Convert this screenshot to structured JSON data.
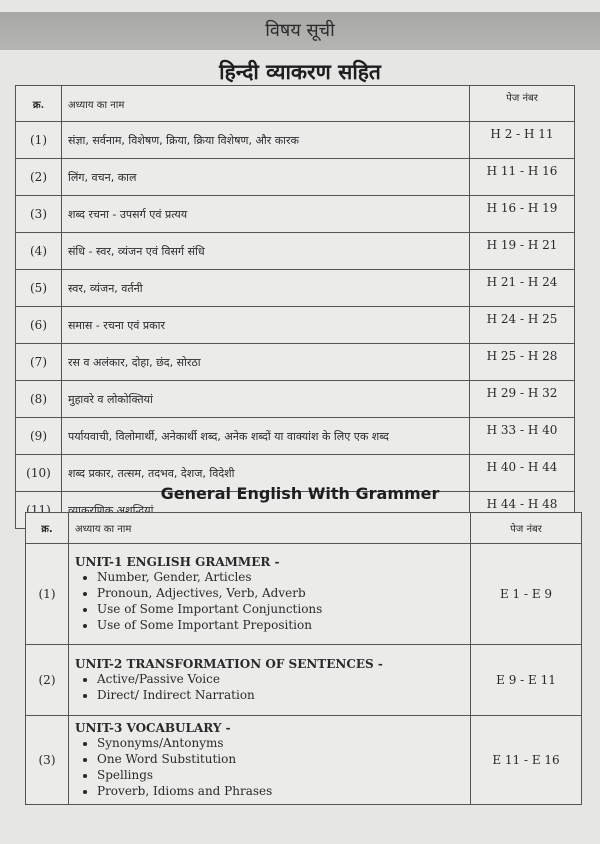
{
  "header": {
    "title": "विषय सूची"
  },
  "hindi": {
    "heading": "हिन्दी व्याकरण सहित",
    "columns": [
      "क्र.",
      "अध्याय का नाम",
      "पेज नंबर"
    ],
    "rows": [
      {
        "no": "(1)",
        "name": "संज्ञा, सर्वनाम, विशेषण, क्रिया, क्रिया विशेषण, और कारक",
        "pages": "H 2 - H 11"
      },
      {
        "no": "(2)",
        "name": "लिंग, वचन, काल",
        "pages": "H 11 - H 16"
      },
      {
        "no": "(3)",
        "name": "शब्द रचना - उपसर्ग एवं प्रत्यय",
        "pages": "H 16 - H 19"
      },
      {
        "no": "(4)",
        "name": "संधि - स्वर, व्यंजन एवं विसर्ग संधि",
        "pages": "H 19 - H 21"
      },
      {
        "no": "(5)",
        "name": "स्वर, व्यंजन, वर्तनी",
        "pages": "H 21 - H 24"
      },
      {
        "no": "(6)",
        "name": "समास - रचना एवं प्रकार",
        "pages": "H 24 - H 25"
      },
      {
        "no": "(7)",
        "name": "रस व अलंकार, दोहा, छंद, सोरठा",
        "pages": "H 25 - H 28"
      },
      {
        "no": "(8)",
        "name": "मुहावरे व लोकोक्तियां",
        "pages": "H 29 - H 32"
      },
      {
        "no": "(9)",
        "name": "पर्यायवाची, विलोमार्थी, अनेकार्थी शब्द, अनेक शब्दों या वाक्यांश के लिए एक शब्द",
        "pages": "H 33 - H 40"
      },
      {
        "no": "(10)",
        "name": "शब्द प्रकार, तत्सम, तदभव, देशज, विदेशी",
        "pages": "H 40 - H 44"
      },
      {
        "no": "(11)",
        "name": "व्याकरणिक अशुद्धियां",
        "pages": "H 44 - H 48"
      }
    ]
  },
  "english": {
    "heading": "General English With Grammer",
    "columns": [
      "क्र.",
      "अध्याय का नाम",
      "पेज नंबर"
    ],
    "rows": [
      {
        "no": "(1)",
        "unit": "UNIT-1 ENGLISH GRAMMER -",
        "items": [
          "Number, Gender, Articles",
          "Pronoun, Adjectives, Verb, Adverb",
          "Use of Some Important Conjunctions",
          "Use of Some Important Preposition"
        ],
        "pages": "E 1 - E 9"
      },
      {
        "no": "(2)",
        "unit": "UNIT-2 TRANSFORMATION OF SENTENCES -",
        "items": [
          "Active/Passive Voice",
          "Direct/ Indirect Narration"
        ],
        "pages": "E 9 - E 11"
      },
      {
        "no": "(3)",
        "unit": "UNIT-3 VOCABULARY -",
        "items": [
          "Synonyms/Antonyms",
          "One Word Substitution",
          "Spellings",
          "Proverb, Idioms and Phrases"
        ],
        "pages": "E 11 - E 16"
      }
    ]
  }
}
